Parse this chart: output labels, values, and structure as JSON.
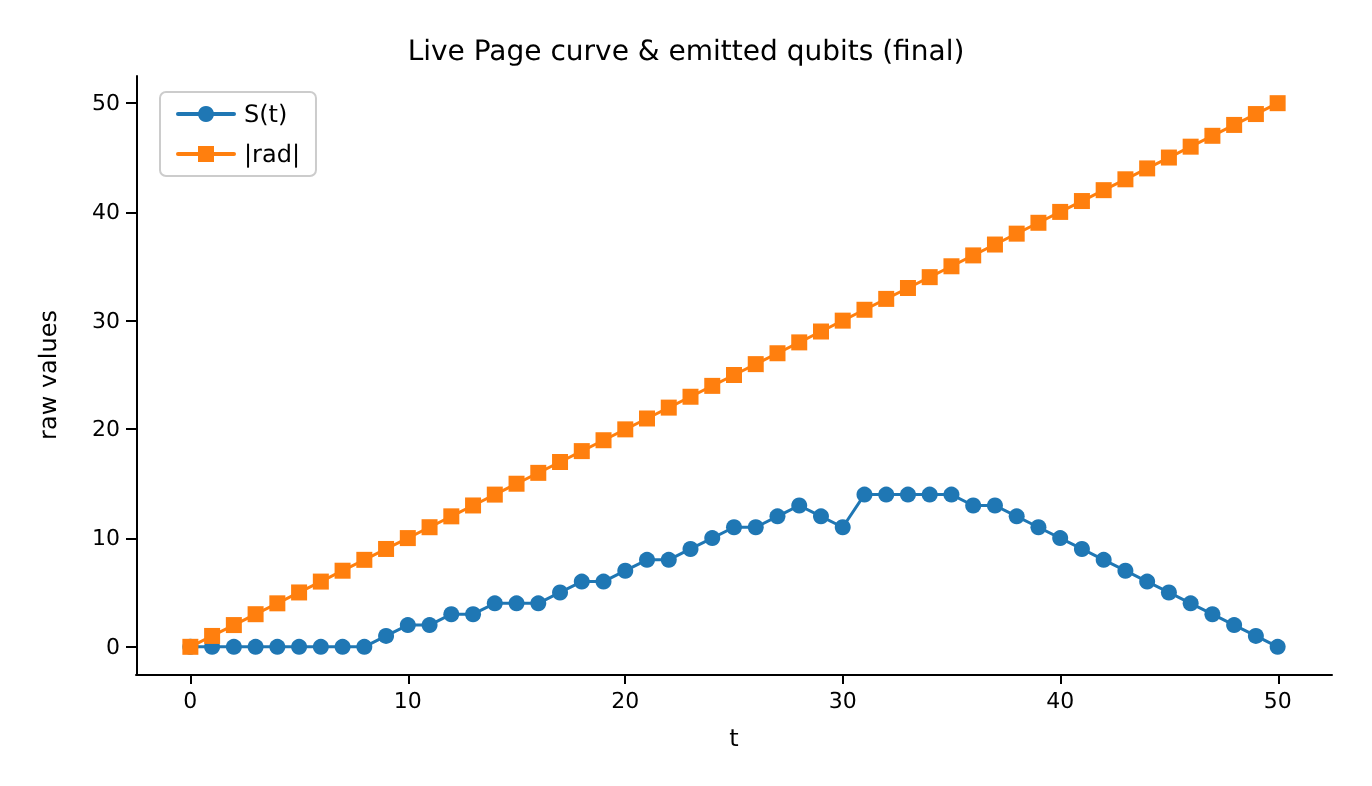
{
  "chart_data": {
    "type": "line",
    "title": "Live Page curve & emitted qubits (final)",
    "xlabel": "t",
    "ylabel": "raw values",
    "x": [
      0,
      1,
      2,
      3,
      4,
      5,
      6,
      7,
      8,
      9,
      10,
      11,
      12,
      13,
      14,
      15,
      16,
      17,
      18,
      19,
      20,
      21,
      22,
      23,
      24,
      25,
      26,
      27,
      28,
      29,
      30,
      31,
      32,
      33,
      34,
      35,
      36,
      37,
      38,
      39,
      40,
      41,
      42,
      43,
      44,
      45,
      46,
      47,
      48,
      49,
      50
    ],
    "series": [
      {
        "name": "S(t)",
        "color": "#1f77b4",
        "marker": "circle",
        "values": [
          0,
          0,
          0,
          0,
          0,
          0,
          0,
          0,
          0,
          1,
          2,
          2,
          3,
          3,
          4,
          4,
          4,
          5,
          6,
          6,
          7,
          8,
          8,
          9,
          10,
          11,
          11,
          12,
          13,
          12,
          11,
          14,
          14,
          14,
          14,
          14,
          13,
          13,
          12,
          11,
          10,
          9,
          8,
          7,
          6,
          5,
          4,
          3,
          2,
          1,
          0
        ]
      },
      {
        "name": "|rad|",
        "color": "#ff7f0e",
        "marker": "square",
        "values": [
          0,
          1,
          2,
          3,
          4,
          5,
          6,
          7,
          8,
          9,
          10,
          11,
          12,
          13,
          14,
          15,
          16,
          17,
          18,
          19,
          20,
          21,
          22,
          23,
          24,
          25,
          26,
          27,
          28,
          29,
          30,
          31,
          32,
          33,
          34,
          35,
          36,
          37,
          38,
          39,
          40,
          41,
          42,
          43,
          44,
          45,
          46,
          47,
          48,
          49,
          50
        ]
      }
    ],
    "xlim": [
      -2.5,
      52.5
    ],
    "xticks": [
      0,
      10,
      20,
      30,
      40,
      50
    ],
    "ylim": [
      -2.5,
      52.5
    ],
    "yticks": [
      0,
      10,
      20,
      30,
      40,
      50
    ],
    "grid": false,
    "legend": "top left",
    "line_style": "solid"
  }
}
